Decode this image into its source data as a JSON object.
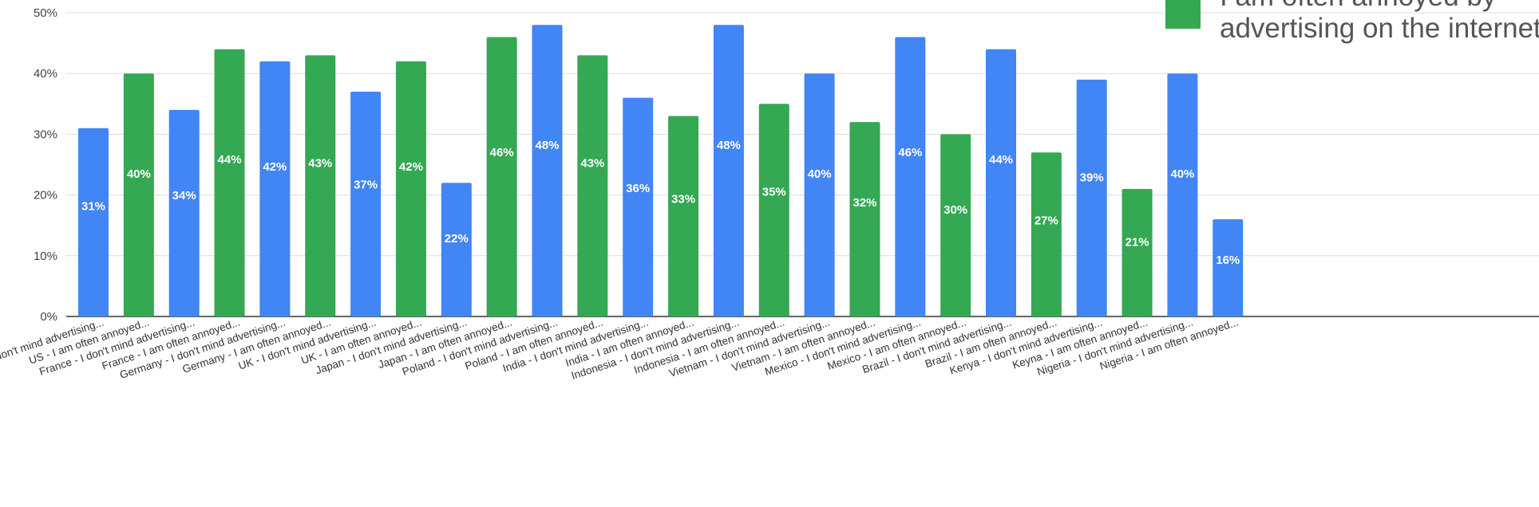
{
  "chart_data": {
    "type": "bar",
    "title": "",
    "xlabel": "",
    "ylabel": "",
    "ylim": [
      0,
      50
    ],
    "yticks": [
      "0%",
      "10%",
      "20%",
      "30%",
      "40%",
      "50%"
    ],
    "grid": true,
    "legend": {
      "placement": "top-right",
      "entries": [
        {
          "label": "I am often annoyed by advertising on the internet",
          "color": "#34a853"
        }
      ]
    },
    "colors": {
      "blue": "#4285f4",
      "green": "#34a853"
    },
    "categories": [
      "US - I don't mind advertising...",
      "US - I am often annoyed...",
      "France - I don't mind advertising...",
      "France - I am often annoyed...",
      "Germany - I don't mind advertising...",
      "Germany - I am often annoyed...",
      "UK - I don't mind advertising...",
      "UK - I am often annoyed...",
      "Japan - I don't mind advertising...",
      "Japan - I am often annoyed...",
      "Poland - I don't mind advertising...",
      "Poland - I am often annoyed...",
      "India - I don't mind advertising...",
      "India - I am often annoyed...",
      "Indonesia - I don't mind advertising...",
      "Indonesia - I am often annoyed...",
      "Vietnam - I don't mind advertising...",
      "Vietnam - I am often annoyed...",
      "Mexico - I don't mind advertising...",
      "Mexico - I am often annoyed...",
      "Brazil - I don't mind advertising...",
      "Brazil - I am often annoyed...",
      "Kenya - I don't mind advertising...",
      "Keyna - I am often annoyed...",
      "Nigeria - I don't mind advertising...",
      "Nigeria - I am often annoyed..."
    ],
    "values": [
      31,
      40,
      34,
      44,
      42,
      43,
      37,
      42,
      22,
      46,
      48,
      43,
      36,
      33,
      48,
      35,
      40,
      32,
      46,
      30,
      44,
      27,
      39,
      21,
      40,
      16
    ],
    "bar_colors": [
      "blue",
      "green",
      "blue",
      "green",
      "blue",
      "green",
      "blue",
      "green",
      "blue",
      "green",
      "blue",
      "green",
      "blue",
      "green",
      "blue",
      "green",
      "blue",
      "green",
      "blue",
      "green",
      "blue",
      "green",
      "blue",
      "green",
      "blue",
      "blue"
    ],
    "data_labels": [
      "31%",
      "40%",
      "34%",
      "44%",
      "42%",
      "43%",
      "37%",
      "42%",
      "22%",
      "46%",
      "48%",
      "43%",
      "36%",
      "33%",
      "48%",
      "35%",
      "40%",
      "32%",
      "46%",
      "30%",
      "44%",
      "27%",
      "39%",
      "21%",
      "40%",
      "16%"
    ]
  }
}
